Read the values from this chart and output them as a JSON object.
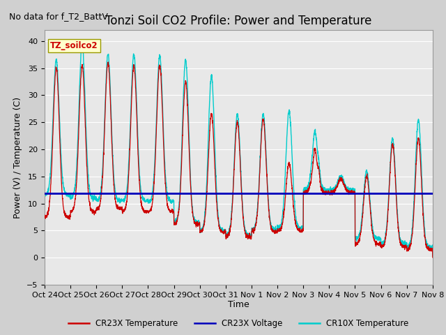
{
  "title": "Tonzi Soil CO2 Profile: Power and Temperature",
  "subtitle": "No data for f_T2_BattV",
  "ylabel": "Power (V) / Temperature (C)",
  "xlabel": "Time",
  "ylim": [
    -5,
    42
  ],
  "yticks": [
    -5,
    0,
    5,
    10,
    15,
    20,
    25,
    30,
    35,
    40
  ],
  "fig_bg_color": "#d0d0d0",
  "plot_bg_color": "#e8e8e8",
  "voltage_value": 11.9,
  "voltage_color": "#0000bb",
  "cr23x_color": "#cc0000",
  "cr10x_color": "#00cccc",
  "annotation_text": "TZ_soilco2",
  "annotation_color": "#cc0000",
  "annotation_bg": "#ffffcc",
  "annotation_edge": "#999900",
  "x_labels": [
    "Oct 24",
    "Oct 25",
    "Oct 26",
    "Oct 27",
    "Oct 28",
    "Oct 29",
    "Oct 30",
    "Oct 31",
    "Nov 1",
    "Nov 2",
    "Nov 3",
    "Nov 4",
    "Nov 5",
    "Nov 6",
    "Nov 7",
    "Nov 8"
  ],
  "legend_labels": [
    "CR23X Temperature",
    "CR23X Voltage",
    "CR10X Temperature"
  ],
  "title_fontsize": 12,
  "axis_fontsize": 9,
  "tick_fontsize": 8,
  "legend_fontsize": 8.5
}
